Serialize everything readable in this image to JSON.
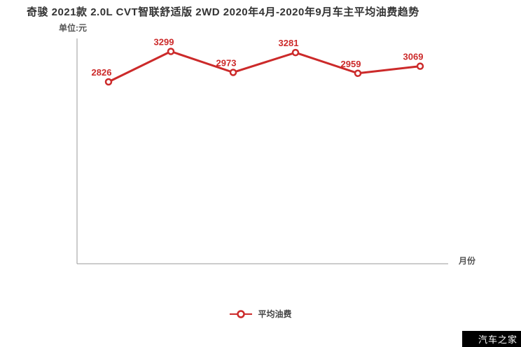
{
  "chart_data": {
    "type": "line",
    "title": "奇骏 2021款 2.0L CVT智联舒适版 2WD 2020年4月-2020年9月车主平均油费趋势",
    "ylabel": "单位:元",
    "xlabel": "月份",
    "ylim": [
      0,
      3500
    ],
    "grid": false,
    "legend_position": "bottom",
    "x": [
      1,
      2,
      3,
      4,
      5,
      6
    ],
    "series": [
      {
        "name": "平均油费",
        "color": "#cc2a2a",
        "values": [
          2826,
          3299,
          2973,
          3281,
          2959,
          3069
        ],
        "point_labels": [
          "2826",
          "3299",
          "2973",
          "3281",
          "2959",
          "3069"
        ]
      }
    ]
  },
  "axes": {
    "color": "#999999"
  },
  "watermark": {
    "text": "汽车之家",
    "background": "#000000",
    "color": "#ffffff"
  }
}
